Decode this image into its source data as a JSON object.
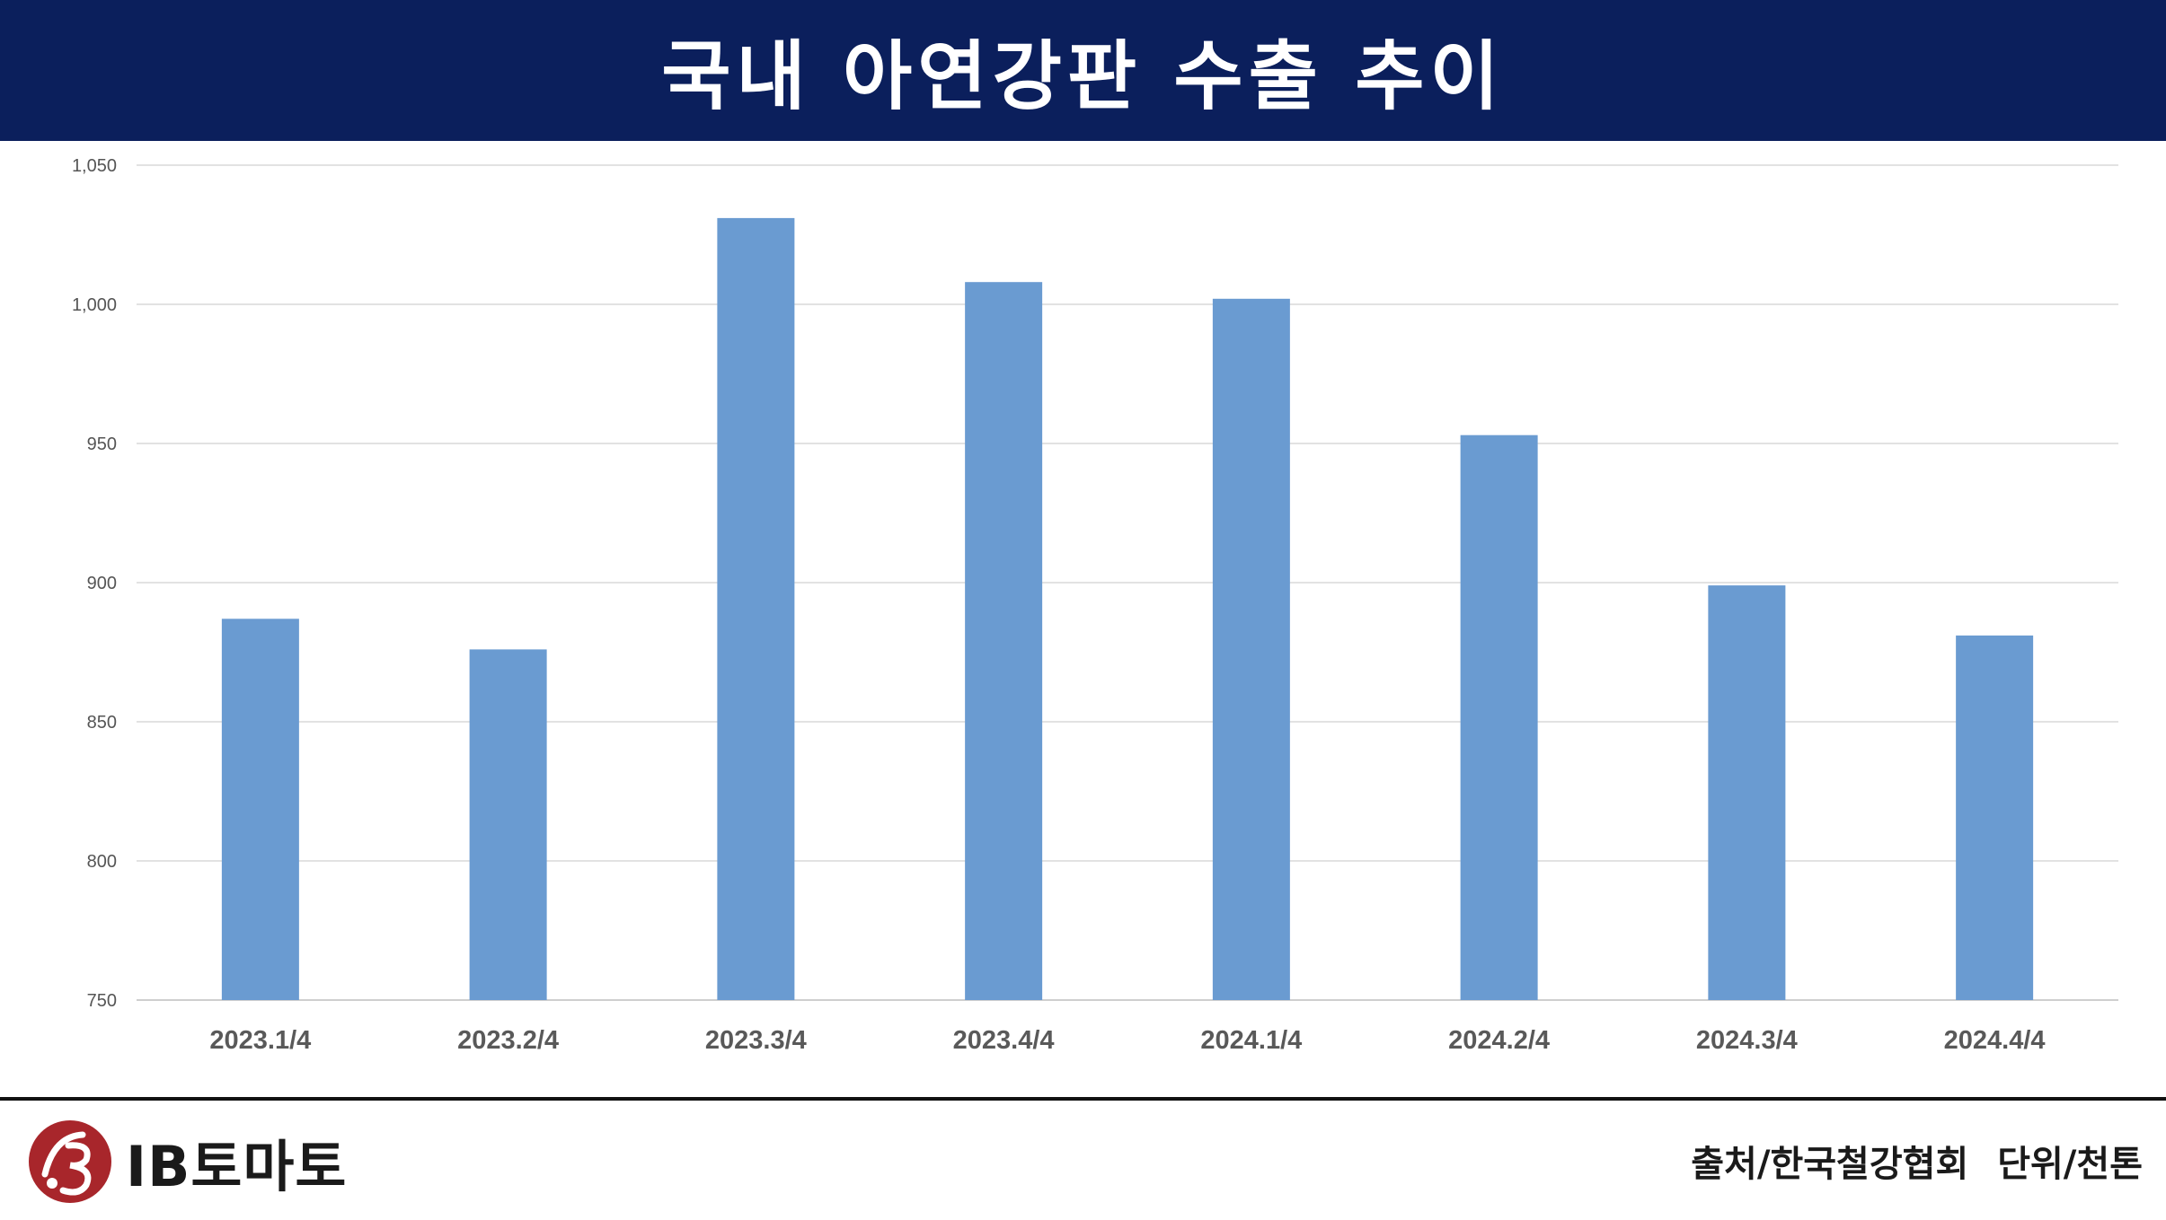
{
  "header": {
    "title": "국내 아연강판 수출 추이"
  },
  "chart_data": {
    "type": "bar",
    "title": "국내 아연강판 수출 추이",
    "categories": [
      "2023.1/4",
      "2023.2/4",
      "2023.3/4",
      "2023.4/4",
      "2024.1/4",
      "2024.2/4",
      "2024.3/4",
      "2024.4/4"
    ],
    "values": [
      887,
      876,
      1031,
      1008,
      1002,
      953,
      899,
      881
    ],
    "ylim": [
      750,
      1050
    ],
    "yticks": [
      750,
      800,
      850,
      900,
      950,
      1000,
      1050
    ],
    "ytick_labels": [
      "750",
      "800",
      "850",
      "900",
      "950",
      "1,000",
      "1,050"
    ],
    "grid": true,
    "bar_color": "#6a9bd1",
    "grid_color": "#d9d9d9"
  },
  "footer": {
    "logo_text": "IB토마토",
    "logo_color": "#a8262b",
    "source": "출처/한국철강협회",
    "unit": "단위/천톤"
  }
}
